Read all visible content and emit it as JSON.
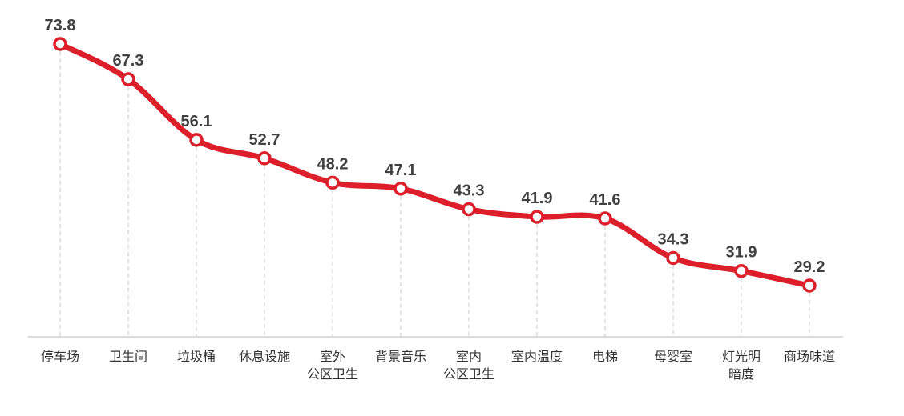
{
  "chart_data": {
    "type": "line",
    "title": "",
    "xlabel": "",
    "ylabel": "",
    "ylim": [
      0,
      80
    ],
    "grid": "vertical dashed guides from each point to axis",
    "legend": "none",
    "categories": [
      [
        "停车场"
      ],
      [
        "卫生间"
      ],
      [
        "垃圾桶"
      ],
      [
        "休息设施"
      ],
      [
        "室外",
        "公区卫生"
      ],
      [
        "背景音乐"
      ],
      [
        "室内",
        "公区卫生"
      ],
      [
        "室内温度"
      ],
      [
        "电梯"
      ],
      [
        "母婴室"
      ],
      [
        "灯光明",
        "暗度"
      ],
      [
        "商场味道"
      ]
    ],
    "series": [
      {
        "values": [
          73.8,
          67.3,
          56.1,
          52.7,
          48.2,
          47.1,
          43.3,
          41.9,
          41.6,
          34.3,
          31.9,
          29.2
        ],
        "labels": [
          "73.8",
          "67.3",
          "56.1",
          "52.7",
          "48.2",
          "47.1",
          "43.3",
          "41.9",
          "41.6",
          "34.3",
          "31.9",
          "29.2"
        ]
      }
    ],
    "colors": {
      "line": "#dc1f2a",
      "marker_fill": "#ffffff",
      "guide": "#d0d0d0",
      "axis": "#d0d0d0"
    }
  }
}
